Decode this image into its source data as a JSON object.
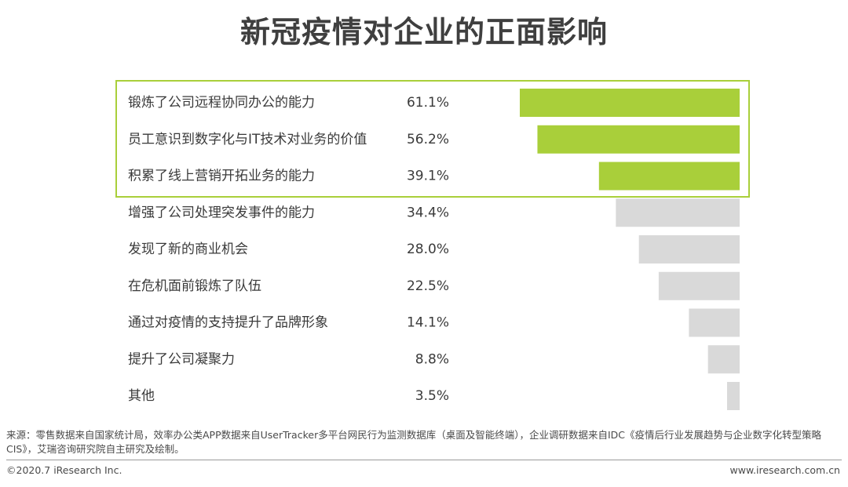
{
  "colors": {
    "highlight": "#a9cf3a",
    "normal": "#d9d9d9",
    "box_border": "#a9cf3a"
  },
  "chart_data": {
    "type": "bar",
    "orientation": "horizontal",
    "title": "新冠疫情对企业的正面影响",
    "categories": [
      "锻炼了公司远程协同办公的能力",
      "员工意识到数字化与IT技术对业务的价值",
      "积累了线上营销开拓业务的能力",
      "增强了公司处理突发事件的能力",
      "发现了新的商业机会",
      "在危机面前锻炼了队伍",
      "通过对疫情的支持提升了品牌形象",
      "提升了公司凝聚力",
      "其他"
    ],
    "values": [
      61.1,
      56.2,
      39.1,
      34.4,
      28.0,
      22.5,
      14.1,
      8.8,
      3.5
    ],
    "value_labels": [
      "61.1%",
      "56.2%",
      "39.1%",
      "34.4%",
      "28.0%",
      "22.5%",
      "14.1%",
      "8.8%",
      "3.5%"
    ],
    "highlighted_count": 3,
    "bar_alignment": "right",
    "xlim": [
      0,
      61.1
    ],
    "xlabel": "",
    "ylabel": ""
  },
  "footer": {
    "source_text": "来源：零售数据来自国家统计局，效率办公类APP数据来自UserTracker多平台网民行为监测数据库（桌面及智能终端），企业调研数据来自IDC《疫情后行业发展趋势与企业数字化转型策略CIS》，艾瑞咨询研究院自主研究及绘制。",
    "copyright": "©2020.7 iResearch Inc.",
    "website": "www.iresearch.com.cn"
  }
}
